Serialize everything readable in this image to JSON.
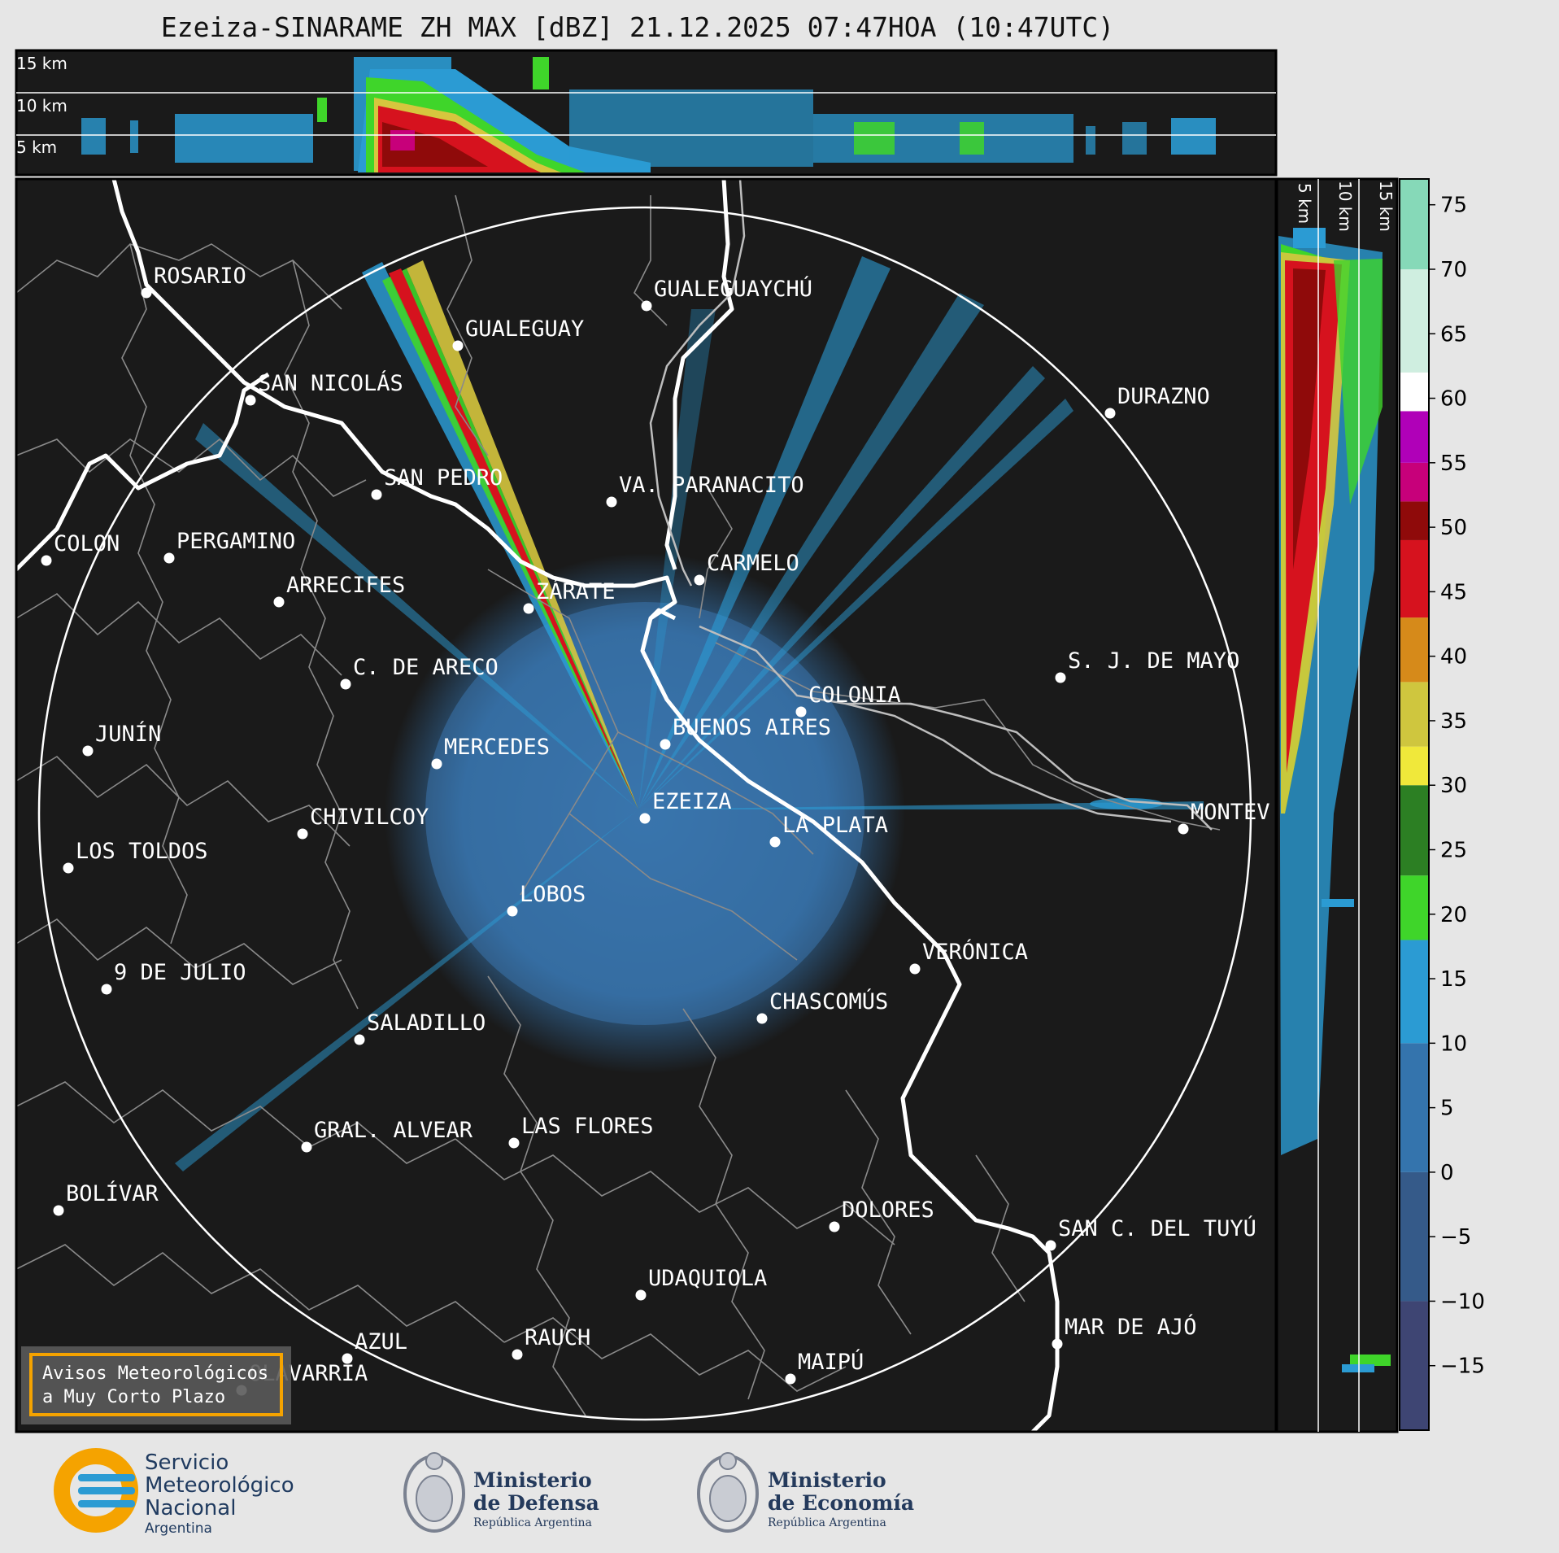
{
  "title": "Ezeiza-SINARAME ZH MAX [dBZ] 21.12.2025 07:47HOA (10:47UTC)",
  "top_panel": {
    "height_labels": [
      "15 km",
      "10 km",
      "5 km"
    ]
  },
  "side_panel": {
    "height_labels": [
      "5 km",
      "10 km",
      "15 km"
    ]
  },
  "colorbar": {
    "unit": "dBZ",
    "ticks": [
      75,
      70,
      65,
      60,
      55,
      50,
      45,
      40,
      35,
      30,
      25,
      20,
      15,
      10,
      5,
      0,
      -5,
      -10,
      -15
    ],
    "tick_labels": [
      "75",
      "70",
      "65",
      "60",
      "55",
      "50",
      "45",
      "40",
      "35",
      "30",
      "25",
      "20",
      "15",
      "10",
      "5",
      "0",
      "−5",
      "−10",
      "−15"
    ],
    "range": [
      -20,
      77
    ],
    "bands": [
      {
        "from": -20,
        "to": -10,
        "color": "#3e4573"
      },
      {
        "from": -10,
        "to": 0,
        "color": "#355a89"
      },
      {
        "from": 0,
        "to": 10,
        "color": "#3474ad"
      },
      {
        "from": 10,
        "to": 18,
        "color": "#2b9bd3"
      },
      {
        "from": 18,
        "to": 23,
        "color": "#3fd52a"
      },
      {
        "from": 23,
        "to": 30,
        "color": "#2c7f23"
      },
      {
        "from": 30,
        "to": 33,
        "color": "#f0e83a"
      },
      {
        "from": 33,
        "to": 38,
        "color": "#cfc63e"
      },
      {
        "from": 38,
        "to": 43,
        "color": "#d68a1a"
      },
      {
        "from": 43,
        "to": 49,
        "color": "#d6121e"
      },
      {
        "from": 49,
        "to": 52,
        "color": "#8f0a0a"
      },
      {
        "from": 52,
        "to": 55,
        "color": "#c7007a"
      },
      {
        "from": 55,
        "to": 59,
        "color": "#b000b8"
      },
      {
        "from": 59,
        "to": 62,
        "color": "#ffffff"
      },
      {
        "from": 62,
        "to": 70,
        "color": "#cfeee0"
      },
      {
        "from": 70,
        "to": 77,
        "color": "#86d9b8"
      }
    ]
  },
  "cities": [
    {
      "name": "ROSARIO"
    },
    {
      "name": "GUALEGUAYCHÚ"
    },
    {
      "name": "GUALEGUAY"
    },
    {
      "name": "SAN NICOLÁS"
    },
    {
      "name": "DURAZNO"
    },
    {
      "name": "SAN PEDRO"
    },
    {
      "name": "VA. PARANACITO"
    },
    {
      "name": "COLON"
    },
    {
      "name": "PERGAMINO"
    },
    {
      "name": "CARMELO"
    },
    {
      "name": "ARRECIFES"
    },
    {
      "name": "ZÁRATE"
    },
    {
      "name": "S. J. DE MAYO"
    },
    {
      "name": "C. DE ARECO"
    },
    {
      "name": "COLONIA"
    },
    {
      "name": "JUNÍN"
    },
    {
      "name": "BUENOS AIRES"
    },
    {
      "name": "MERCEDES"
    },
    {
      "name": "EZEIZA"
    },
    {
      "name": "MONTEV"
    },
    {
      "name": "CHIVILCOY"
    },
    {
      "name": "LA PLATA"
    },
    {
      "name": "LOS TOLDOS"
    },
    {
      "name": "LOBOS"
    },
    {
      "name": "VERÓNICA"
    },
    {
      "name": "9 DE JULIO"
    },
    {
      "name": "CHASCOMÚS"
    },
    {
      "name": "SALADILLO"
    },
    {
      "name": "GRAL. ALVEAR"
    },
    {
      "name": "LAS FLORES"
    },
    {
      "name": "BOLÍVAR"
    },
    {
      "name": "DOLORES"
    },
    {
      "name": "SAN C. DEL TUYÚ"
    },
    {
      "name": "UDAQUIOLA"
    },
    {
      "name": "MAR DE AJÓ"
    },
    {
      "name": "AZUL"
    },
    {
      "name": "RAUCH"
    },
    {
      "name": "OLAVARRÍA"
    },
    {
      "name": "MAIPÚ"
    }
  ],
  "badge": {
    "line1": "Avisos Meteorológicos",
    "line2": "a Muy Corto Plazo"
  },
  "logos": {
    "smn": [
      "Servicio",
      "Meteorológico",
      "Nacional",
      "Argentina"
    ],
    "defensa": [
      "Ministerio",
      "de Defensa",
      "República Argentina"
    ],
    "economia": [
      "Ministerio",
      "de Economía",
      "República Argentina"
    ]
  },
  "colors": {
    "map_bg": "#1a1a1a",
    "echo_base": "#3a74ad",
    "echo_light": "#2b9bd3",
    "range_ring": "#ffffff",
    "badge_border": "#f5a300"
  }
}
